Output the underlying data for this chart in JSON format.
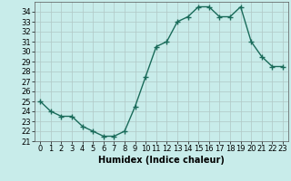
{
  "x": [
    0,
    1,
    2,
    3,
    4,
    5,
    6,
    7,
    8,
    9,
    10,
    11,
    12,
    13,
    14,
    15,
    16,
    17,
    18,
    19,
    20,
    21,
    22,
    23
  ],
  "y": [
    25.0,
    24.0,
    23.5,
    23.5,
    22.5,
    22.0,
    21.5,
    21.5,
    22.0,
    24.5,
    27.5,
    30.5,
    31.0,
    33.0,
    33.5,
    34.5,
    34.5,
    33.5,
    33.5,
    34.5,
    31.0,
    29.5,
    28.5,
    28.5
  ],
  "line_color": "#1a6b5a",
  "marker": "+",
  "marker_size": 4,
  "marker_color": "#1a6b5a",
  "background_color": "#c8ecea",
  "grid_color": "#b0c8c6",
  "xlabel": "Humidex (Indice chaleur)",
  "xlabel_fontsize": 7,
  "tick_fontsize": 6,
  "ylim": [
    21,
    35
  ],
  "xlim": [
    -0.5,
    23.5
  ],
  "yticks": [
    21,
    22,
    23,
    24,
    25,
    26,
    27,
    28,
    29,
    30,
    31,
    32,
    33,
    34
  ],
  "xticks": [
    0,
    1,
    2,
    3,
    4,
    5,
    6,
    7,
    8,
    9,
    10,
    11,
    12,
    13,
    14,
    15,
    16,
    17,
    18,
    19,
    20,
    21,
    22,
    23
  ],
  "line_width": 1.0
}
